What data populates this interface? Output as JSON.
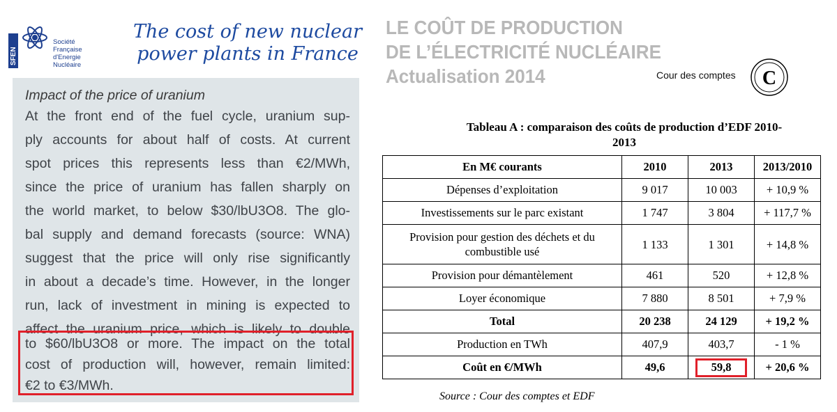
{
  "left": {
    "logo_abbrev": "SFEN",
    "logo_lines": [
      "Société",
      "Française",
      "d'Energie",
      "Nucléaire"
    ],
    "title_lines": [
      "The cost of new nuclear",
      "power plants in France"
    ],
    "heading": "Impact of the price of uranium",
    "body_lines": [
      "At the front end of the fuel cycle, uranium sup-",
      "ply accounts for about half of costs. At current",
      "spot prices this represents less than €2/MWh,",
      "since the price of uranium has fallen sharply on",
      "the world market, to below $30/lbU3O8. The glo-",
      "bal supply and demand forecasts (source: WNA)",
      "suggest that the price will only rise significantly",
      "in about a decade’s time. However, in the longer",
      "run, lack of investment in mining is expected to",
      "affect the uranium price, which is likely to double",
      "to $60/lbU3O8 or more. The impact on the total",
      "cost of production will, however, remain limited:",
      "€2 to €3/MWh."
    ],
    "highlight_color": "#e0202a"
  },
  "right": {
    "title_lines": [
      "LE COÛT DE PRODUCTION",
      "DE L’ÉLECTRICITÉ NUCLÉAIRE",
      "Actualisation 2014"
    ],
    "brand": "Cour des comptes",
    "brand_logo_letter": "C",
    "table_title_lines": [
      "Tableau A : comparaison des coûts de production d’EDF 2010-",
      "2013"
    ],
    "table": {
      "headers": [
        "En M€ courants",
        "2010",
        "2013",
        "2013/2010"
      ],
      "rows": [
        [
          "Dépenses d’exploitation",
          "9 017",
          "10 003",
          "+ 10,9 %"
        ],
        [
          "Investissements sur le parc existant",
          "1 747",
          "3 804",
          "+ 117,7 %"
        ],
        [
          "Provision pour gestion des déchets et du combustible usé",
          "1 133",
          "1 301",
          "+ 14,8 %"
        ],
        [
          "Provision pour démantèlement",
          "461",
          "520",
          "+ 12,8 %"
        ],
        [
          "Loyer économique",
          "7 880",
          "8 501",
          "+ 7,9 %"
        ],
        [
          "Total",
          "20 238",
          "24 129",
          "+ 19,2 %"
        ],
        [
          "Production en TWh",
          "407,9",
          "403,7",
          "- 1 %"
        ],
        [
          "Coût en €/MWh",
          "49,6",
          "59,8",
          "+ 20,6 %"
        ]
      ]
    },
    "source": "Source : Cour des comptes et EDF"
  }
}
